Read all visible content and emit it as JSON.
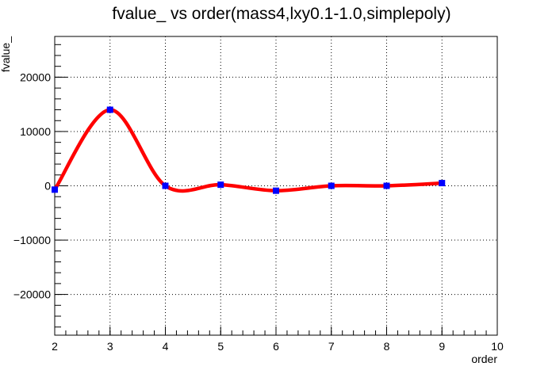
{
  "chart_data": {
    "type": "line",
    "title": "fvalue_ vs order(mass4,lxy0.1-1.0,simplepoly)",
    "xlabel": "order",
    "ylabel": "fvalue_",
    "xlim": [
      2,
      10
    ],
    "ylim": [
      -27500,
      27500
    ],
    "x_ticks": [
      2,
      3,
      4,
      5,
      6,
      7,
      8,
      9,
      10
    ],
    "y_ticks": [
      -20000,
      -10000,
      0,
      10000,
      20000
    ],
    "y_tick_labels": [
      "−20000",
      "−10000",
      "0",
      "10000",
      "20000"
    ],
    "grid": true,
    "series": [
      {
        "points": [
          {
            "x": 2,
            "y": -700
          },
          {
            "x": 3,
            "y": 14000
          },
          {
            "x": 4,
            "y": 0
          },
          {
            "x": 5,
            "y": 200
          },
          {
            "x": 6,
            "y": -900
          },
          {
            "x": 7,
            "y": 0
          },
          {
            "x": 8,
            "y": 0
          },
          {
            "x": 9,
            "y": 500
          }
        ],
        "marker_color": "#0000ff",
        "line_color": "#ff0000"
      }
    ]
  }
}
